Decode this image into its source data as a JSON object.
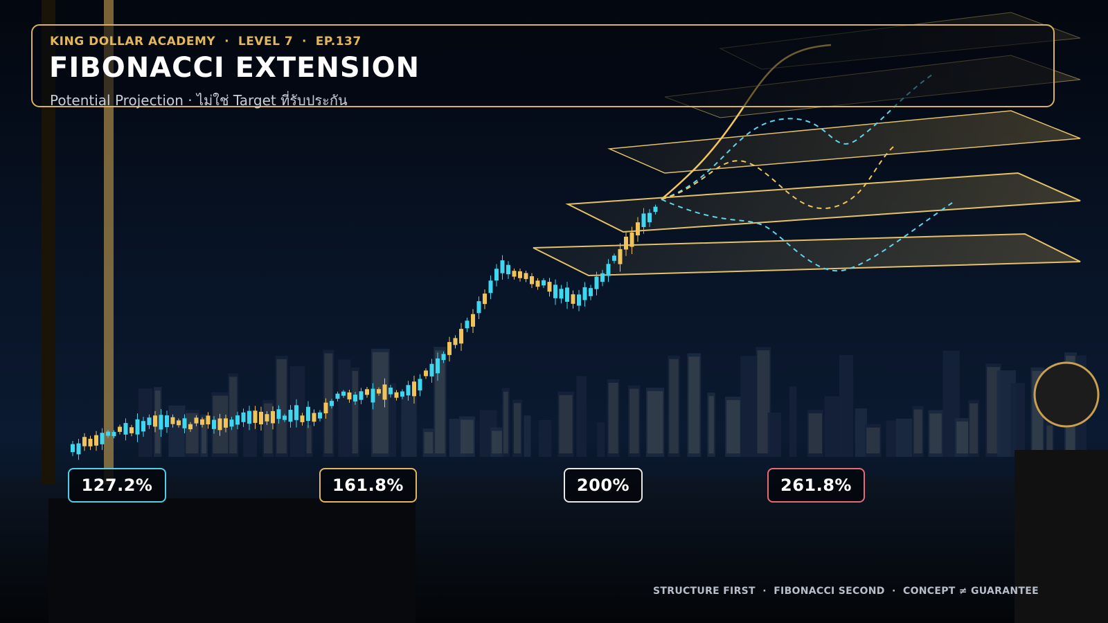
{
  "header": {
    "kicker": "KING DOLLAR ACADEMY  ·  LEVEL 7  ·  EP.137",
    "title": "FIBONACCI EXTENSION",
    "subtitle": "Potential Projection · ไม่ใช่ Target ที่รับประกัน"
  },
  "levels": [
    "127.2%",
    "161.8%",
    "200%",
    "261.8%"
  ],
  "footer": "STRUCTURE FIRST  ·  FIBONACCI SECOND  ·  CONCEPT ≠ GUARANTEE"
}
